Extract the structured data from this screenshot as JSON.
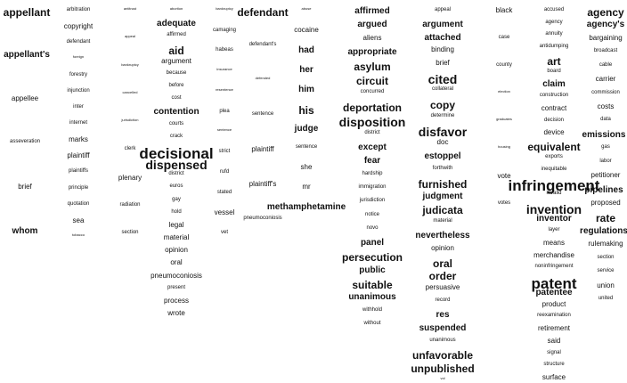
{
  "word_clouds": [
    {
      "words": [
        {
          "t": "appellant",
          "w": 5
        },
        {
          "t": "appellant's",
          "w": 4
        },
        {
          "t": "appellee",
          "w": 3
        },
        {
          "t": "asseveration",
          "w": 2
        },
        {
          "t": "brief",
          "w": 3
        },
        {
          "t": "whom",
          "w": 4
        }
      ]
    },
    {
      "words": [
        {
          "t": "arbitration",
          "w": 2
        },
        {
          "t": "copyright",
          "w": 3
        },
        {
          "t": "defendant",
          "w": 2
        },
        {
          "t": "foreign",
          "w": 1
        },
        {
          "t": "forestry",
          "w": 2
        },
        {
          "t": "injunction",
          "w": 2
        },
        {
          "t": "inter",
          "w": 2
        },
        {
          "t": "internet",
          "w": 2
        },
        {
          "t": "marks",
          "w": 3
        },
        {
          "t": "plaintiff",
          "w": 3
        },
        {
          "t": "plaintiffs",
          "w": 2
        },
        {
          "t": "principle",
          "w": 2
        },
        {
          "t": "quotation",
          "w": 2
        },
        {
          "t": "sea",
          "w": 3
        },
        {
          "t": "tobacco",
          "w": 1
        }
      ]
    },
    {
      "words": [
        {
          "t": "antitrust",
          "w": 1
        },
        {
          "t": "appeal",
          "w": 1
        },
        {
          "t": "bankruptcy",
          "w": 1
        },
        {
          "t": "cancelled",
          "w": 1
        },
        {
          "t": "jurisdiction",
          "w": 1
        },
        {
          "t": "clerk",
          "w": 2
        },
        {
          "t": "plenary",
          "w": 3
        },
        {
          "t": "radiation",
          "w": 2
        },
        {
          "t": "section",
          "w": 2
        }
      ]
    },
    {
      "words": [
        {
          "t": "abortion",
          "w": 1
        },
        {
          "t": "adequate",
          "w": 4
        },
        {
          "t": "affirmed",
          "w": 2
        },
        {
          "t": "aid",
          "w": 5
        },
        {
          "t": "argument",
          "w": 3
        },
        {
          "t": "because",
          "w": 2
        },
        {
          "t": "before",
          "w": 2
        },
        {
          "t": "cost",
          "w": 2
        },
        {
          "t": "contention",
          "w": 4
        },
        {
          "t": "courts",
          "w": 2
        },
        {
          "t": "crack",
          "w": 2
        },
        {
          "t": "decisional",
          "w": 7
        },
        {
          "t": "dispensed",
          "w": 6
        },
        {
          "t": "district",
          "w": 2
        },
        {
          "t": "euros",
          "w": 2
        },
        {
          "t": "gay",
          "w": 2
        },
        {
          "t": "hold",
          "w": 2
        },
        {
          "t": "legal",
          "w": 3
        },
        {
          "t": "material",
          "w": 3
        },
        {
          "t": "opinion",
          "w": 3
        },
        {
          "t": "oral",
          "w": 3
        },
        {
          "t": "pneumoconiosis",
          "w": 3
        },
        {
          "t": "present",
          "w": 2
        },
        {
          "t": "process",
          "w": 3
        },
        {
          "t": "wrote",
          "w": 3
        }
      ]
    },
    {
      "words": [
        {
          "t": "bankruptcy",
          "w": 1
        },
        {
          "t": "camaging",
          "w": 2
        },
        {
          "t": "habeas",
          "w": 2
        },
        {
          "t": "insurance",
          "w": 1
        },
        {
          "t": "resentence",
          "w": 1
        },
        {
          "t": "plea",
          "w": 2
        },
        {
          "t": "sentence",
          "w": 1
        },
        {
          "t": "strict",
          "w": 2
        },
        {
          "t": "rufd",
          "w": 2
        },
        {
          "t": "stated",
          "w": 2
        },
        {
          "t": "vessel",
          "w": 3
        },
        {
          "t": "vet",
          "w": 2
        }
      ]
    },
    {
      "words": [
        {
          "t": "defendant",
          "w": 5
        },
        {
          "t": "defendant's",
          "w": 2
        },
        {
          "t": "defended",
          "w": 1
        },
        {
          "t": "sentence",
          "w": 2
        },
        {
          "t": "plaintiff",
          "w": 3
        },
        {
          "t": "plaintiff's",
          "w": 3
        },
        {
          "t": "pneumoconiosis",
          "w": 2
        }
      ]
    },
    {
      "words": [
        {
          "t": "abuse",
          "w": 1
        },
        {
          "t": "cocaine",
          "w": 3
        },
        {
          "t": "had",
          "w": 4
        },
        {
          "t": "her",
          "w": 4
        },
        {
          "t": "him",
          "w": 4
        },
        {
          "t": "his",
          "w": 5
        },
        {
          "t": "judge",
          "w": 4
        },
        {
          "t": "sentence",
          "w": 2
        },
        {
          "t": "she",
          "w": 3
        },
        {
          "t": "mr",
          "w": 3
        },
        {
          "t": "methamphetamine",
          "w": 4
        }
      ]
    },
    {
      "words": [
        {
          "t": "affirmed",
          "w": 4
        },
        {
          "t": "argued",
          "w": 4
        },
        {
          "t": "aliens",
          "w": 3
        },
        {
          "t": "appropriate",
          "w": 4
        },
        {
          "t": "asylum",
          "w": 5
        },
        {
          "t": "circuit",
          "w": 5
        },
        {
          "t": "concurred",
          "w": 2
        },
        {
          "t": "deportation",
          "w": 5
        },
        {
          "t": "disposition",
          "w": 6
        },
        {
          "t": "district",
          "w": 2
        },
        {
          "t": "except",
          "w": 4
        },
        {
          "t": "fear",
          "w": 4
        },
        {
          "t": "hardship",
          "w": 2
        },
        {
          "t": "immigration",
          "w": 2
        },
        {
          "t": "jurisdiction",
          "w": 2
        },
        {
          "t": "notice",
          "w": 2
        },
        {
          "t": "novo",
          "w": 2
        },
        {
          "t": "panel",
          "w": 4
        },
        {
          "t": "persecution",
          "w": 5
        },
        {
          "t": "public",
          "w": 4
        },
        {
          "t": "suitable",
          "w": 5
        },
        {
          "t": "unanimous",
          "w": 4
        },
        {
          "t": "withhold",
          "w": 2
        },
        {
          "t": "without",
          "w": 2
        }
      ]
    },
    {
      "words": [
        {
          "t": "appeal",
          "w": 2
        },
        {
          "t": "argument",
          "w": 4
        },
        {
          "t": "attached",
          "w": 4
        },
        {
          "t": "binding",
          "w": 3
        },
        {
          "t": "brief",
          "w": 3
        },
        {
          "t": "cited",
          "w": 6
        },
        {
          "t": "collateral",
          "w": 2
        },
        {
          "t": "copy",
          "w": 5
        },
        {
          "t": "determine",
          "w": 2
        },
        {
          "t": "disfavor",
          "w": 6
        },
        {
          "t": "doc",
          "w": 3
        },
        {
          "t": "estoppel",
          "w": 4
        },
        {
          "t": "forthwith",
          "w": 2
        },
        {
          "t": "furnished",
          "w": 5
        },
        {
          "t": "judgment",
          "w": 4
        },
        {
          "t": "judicata",
          "w": 5
        },
        {
          "t": "material",
          "w": 2
        },
        {
          "t": "nevertheless",
          "w": 4
        },
        {
          "t": "opinion",
          "w": 3
        },
        {
          "t": "oral",
          "w": 5
        },
        {
          "t": "order",
          "w": 5
        },
        {
          "t": "persuasive",
          "w": 3
        },
        {
          "t": "record",
          "w": 2
        },
        {
          "t": "res",
          "w": 4
        },
        {
          "t": "suspended",
          "w": 4
        },
        {
          "t": "unanimous",
          "w": 2
        },
        {
          "t": "unfavorable",
          "w": 5
        },
        {
          "t": "unpublished",
          "w": 5
        },
        {
          "t": "vol",
          "w": 1
        }
      ]
    },
    {
      "words": [
        {
          "t": "black",
          "w": 3
        },
        {
          "t": "case",
          "w": 2
        },
        {
          "t": "county",
          "w": 2
        },
        {
          "t": "election",
          "w": 1
        },
        {
          "t": "graduates",
          "w": 1
        },
        {
          "t": "housing",
          "w": 1
        },
        {
          "t": "vote",
          "w": 3
        },
        {
          "t": "votes",
          "w": 2
        }
      ]
    },
    {
      "words": [
        {
          "t": "accused",
          "w": 2
        },
        {
          "t": "agency",
          "w": 2
        },
        {
          "t": "annuity",
          "w": 2
        },
        {
          "t": "antidumping",
          "w": 2
        },
        {
          "t": "art",
          "w": 5
        },
        {
          "t": "board",
          "w": 2
        },
        {
          "t": "claim",
          "w": 4
        },
        {
          "t": "construction",
          "w": 2
        },
        {
          "t": "contract",
          "w": 3
        },
        {
          "t": "decision",
          "w": 2
        },
        {
          "t": "device",
          "w": 3
        },
        {
          "t": "equivalent",
          "w": 5
        },
        {
          "t": "exports",
          "w": 2
        },
        {
          "t": "inequitable",
          "w": 2
        },
        {
          "t": "infringement",
          "w": 7
        },
        {
          "t": "invalid",
          "w": 2
        },
        {
          "t": "invention",
          "w": 6
        },
        {
          "t": "inventor",
          "w": 4
        },
        {
          "t": "layer",
          "w": 2
        },
        {
          "t": "means",
          "w": 3
        },
        {
          "t": "merchandise",
          "w": 3
        },
        {
          "t": "noninfringement",
          "w": 2
        },
        {
          "t": "patent",
          "w": 7
        },
        {
          "t": "patentee",
          "w": 4
        },
        {
          "t": "product",
          "w": 3
        },
        {
          "t": "reexamination",
          "w": 2
        },
        {
          "t": "retirement",
          "w": 3
        },
        {
          "t": "said",
          "w": 3
        },
        {
          "t": "signal",
          "w": 2
        },
        {
          "t": "structure",
          "w": 2
        },
        {
          "t": "surface",
          "w": 3
        }
      ]
    },
    {
      "words": [
        {
          "t": "agency",
          "w": 5
        },
        {
          "t": "agency's",
          "w": 4
        },
        {
          "t": "bargaining",
          "w": 3
        },
        {
          "t": "broadcast",
          "w": 2
        },
        {
          "t": "cable",
          "w": 2
        },
        {
          "t": "carrier",
          "w": 3
        },
        {
          "t": "commission",
          "w": 2
        },
        {
          "t": "costs",
          "w": 3
        },
        {
          "t": "data",
          "w": 2
        },
        {
          "t": "emissions",
          "w": 4
        },
        {
          "t": "gas",
          "w": 2
        },
        {
          "t": "labor",
          "w": 2
        },
        {
          "t": "petitioner",
          "w": 3
        },
        {
          "t": "pipelines",
          "w": 4
        },
        {
          "t": "proposed",
          "w": 3
        },
        {
          "t": "rate",
          "w": 5
        },
        {
          "t": "regulations",
          "w": 4
        },
        {
          "t": "rulemaking",
          "w": 3
        },
        {
          "t": "section",
          "w": 2
        },
        {
          "t": "service",
          "w": 2
        },
        {
          "t": "union",
          "w": 3
        },
        {
          "t": "united",
          "w": 2
        }
      ]
    }
  ]
}
